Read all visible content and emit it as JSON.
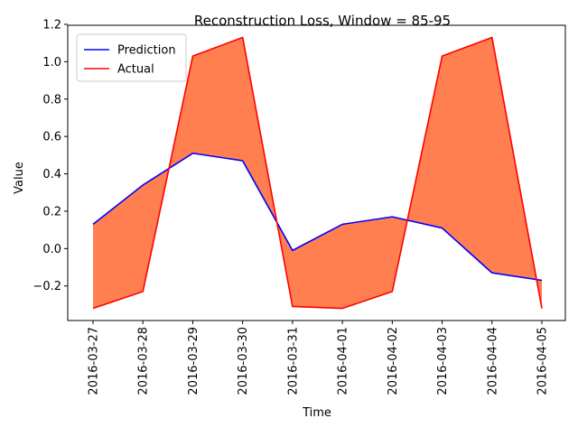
{
  "chart_data": {
    "type": "line",
    "title": "Reconstruction Loss, Window = 85-95",
    "xlabel": "Time",
    "ylabel": "Value",
    "x": [
      "2016-03-27",
      "2016-03-28",
      "2016-03-29",
      "2016-03-30",
      "2016-03-31",
      "2016-04-01",
      "2016-04-02",
      "2016-04-03",
      "2016-04-04",
      "2016-04-05"
    ],
    "series": [
      {
        "name": "Prediction",
        "color": "#0000ff",
        "values": [
          0.13,
          0.34,
          0.51,
          0.47,
          -0.01,
          0.13,
          0.17,
          0.11,
          -0.13,
          -0.17
        ]
      },
      {
        "name": "Actual",
        "color": "#ff0000",
        "values": [
          -0.32,
          -0.23,
          1.03,
          1.13,
          -0.31,
          -0.32,
          -0.23,
          1.03,
          1.13,
          -0.32
        ]
      }
    ],
    "fill_between": {
      "series": [
        "Prediction",
        "Actual"
      ],
      "color": "#ff7f50"
    },
    "ylim": [
      -0.385,
      1.195
    ],
    "yticks": [
      -0.2,
      0.0,
      0.2,
      0.4,
      0.6,
      0.8,
      1.0,
      1.2
    ],
    "ytick_labels": [
      "−0.2",
      "0.0",
      "0.2",
      "0.4",
      "0.6",
      "0.8",
      "1.0",
      "1.2"
    ],
    "grid": false,
    "legend_position": "upper-left"
  }
}
